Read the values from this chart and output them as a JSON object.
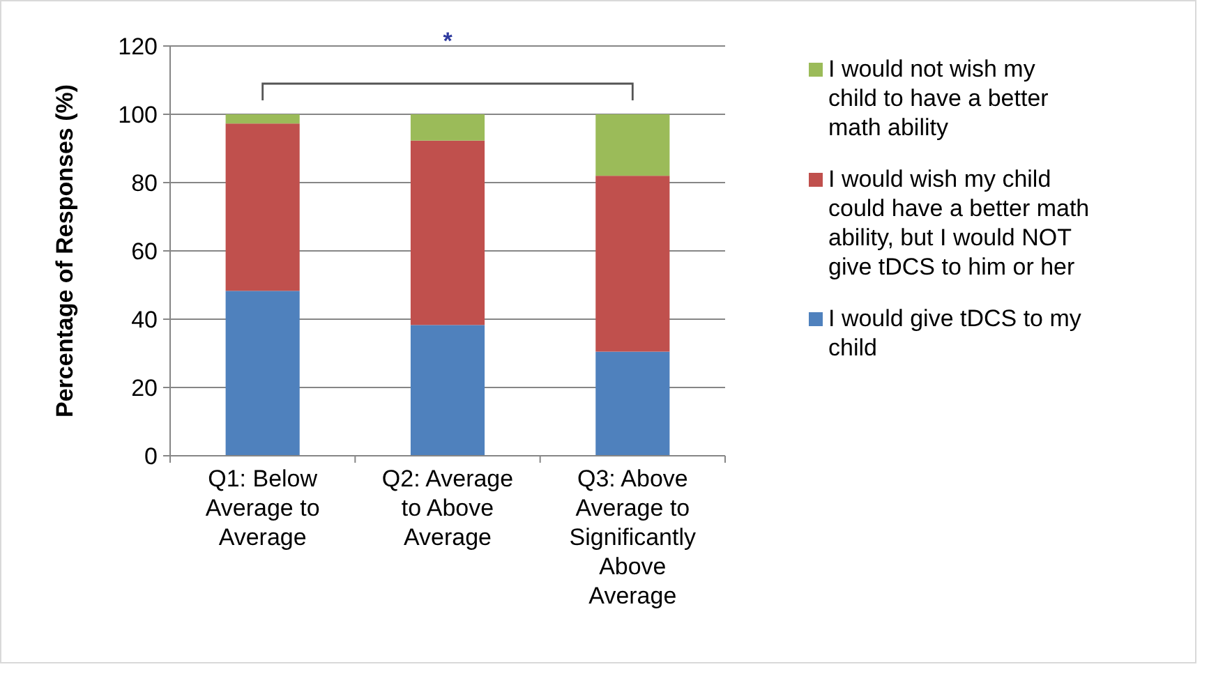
{
  "chart_data": {
    "type": "bar",
    "stacked": true,
    "ylabel": "Percentage of Responses (%)",
    "categories": [
      "Q1: Below Average to Average",
      "Q2: Average to Above Average",
      "Q3: Above Average to Significantly Above Average"
    ],
    "series": [
      {
        "name": "I would give tDCS to my child",
        "color": "#4f81bd",
        "values": [
          48.3,
          38.3,
          30.5
        ]
      },
      {
        "name": "I would wish my child could have a better math ability, but I would NOT give tDCS to him or her",
        "color": "#c0504d",
        "values": [
          49,
          54,
          51.5
        ]
      },
      {
        "name": "I would not wish my child to have a better math ability",
        "color": "#9bbb59",
        "values": [
          2.7,
          7.7,
          18
        ]
      }
    ],
    "ylim": [
      0,
      120
    ],
    "yticks": [
      0,
      20,
      40,
      60,
      80,
      100,
      120
    ],
    "grid": "y",
    "legend": "right",
    "annotations": [
      "*"
    ]
  }
}
